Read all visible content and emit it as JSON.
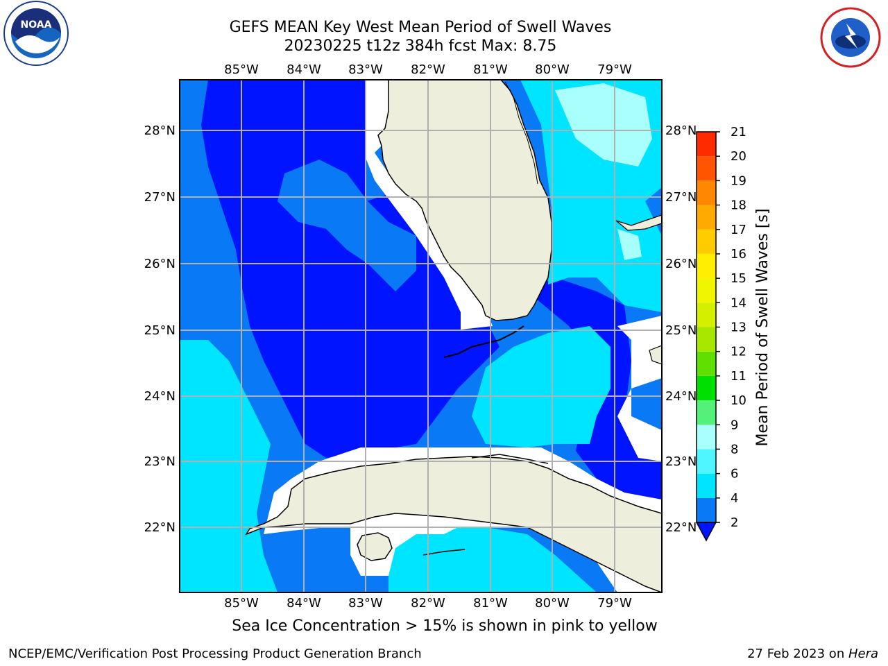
{
  "title_line1": "GEFS MEAN Key West Mean Period of Swell Waves",
  "title_line2": "20230225 t12z 384h fcst   Max: 8.75",
  "lon_labels": [
    "85°W",
    "84°W",
    "83°W",
    "82°W",
    "81°W",
    "80°W",
    "79°W"
  ],
  "lat_labels": [
    "28°N",
    "27°N",
    "26°N",
    "25°N",
    "24°N",
    "23°N",
    "22°N"
  ],
  "colorbar": {
    "title": "Mean Period of Swell Waves [s]",
    "ticks": [
      "2",
      "4",
      "6",
      "8",
      "9",
      "10",
      "11",
      "12",
      "13",
      "14",
      "15",
      "16",
      "17",
      "18",
      "19",
      "20",
      "21"
    ],
    "colors": [
      "#0a79f5",
      "#00e5ff",
      "#4ff5ff",
      "#a8fffb",
      "#55f07a",
      "#00e000",
      "#5fe000",
      "#a8e800",
      "#d4f000",
      "#f0f500",
      "#ffee00",
      "#ffcc00",
      "#ffaa00",
      "#ff8800",
      "#ff5500",
      "#ff2a00",
      "#ff0000"
    ],
    "under_color": "#0014ff"
  },
  "colors": {
    "deep_blue": "#0014ff",
    "mid_blue": "#0a79f5",
    "cyan": "#00e5ff",
    "light_cyan": "#a8fffb",
    "land": "#eeeedc",
    "grid": "#b0b0b0"
  },
  "note": "Sea Ice Concentration > 15% is shown in pink to yellow",
  "footer_left": "NCEP/EMC/Verification Post Processing Product Generation Branch",
  "footer_date": "27 Feb 2023 on ",
  "footer_host": "Hera",
  "logos": [
    "noaa-logo",
    "nws-logo"
  ]
}
